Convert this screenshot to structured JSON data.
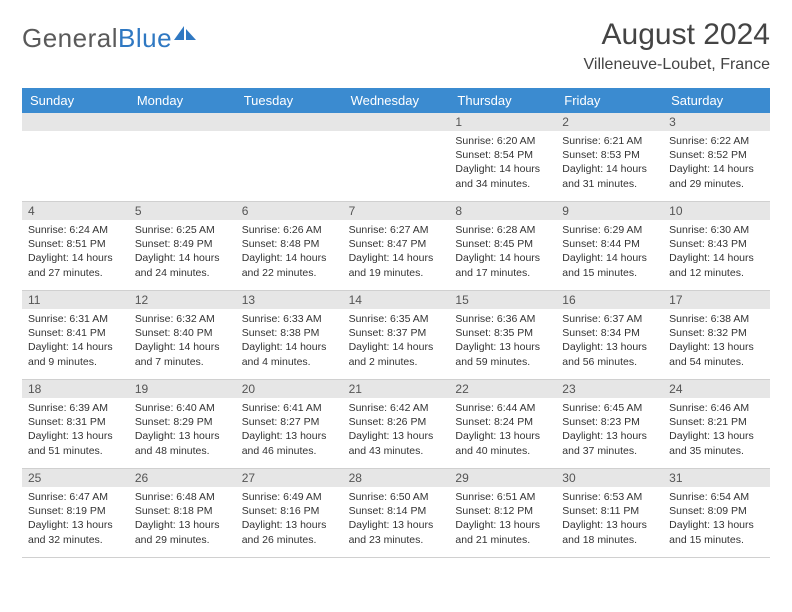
{
  "logo": {
    "text1": "General",
    "text2": "Blue"
  },
  "title": "August 2024",
  "location": "Villeneuve-Loubet, France",
  "colors": {
    "header_bg": "#3b8bd0",
    "header_text": "#ffffff",
    "daynum_bg": "#e6e6e6",
    "text": "#333333",
    "logo_gray": "#5a5a5a",
    "logo_blue": "#2f78c2"
  },
  "dayHeaders": [
    "Sunday",
    "Monday",
    "Tuesday",
    "Wednesday",
    "Thursday",
    "Friday",
    "Saturday"
  ],
  "weeks": [
    [
      {
        "num": "",
        "sunrise": "",
        "sunset": "",
        "daylight": ""
      },
      {
        "num": "",
        "sunrise": "",
        "sunset": "",
        "daylight": ""
      },
      {
        "num": "",
        "sunrise": "",
        "sunset": "",
        "daylight": ""
      },
      {
        "num": "",
        "sunrise": "",
        "sunset": "",
        "daylight": ""
      },
      {
        "num": "1",
        "sunrise": "Sunrise: 6:20 AM",
        "sunset": "Sunset: 8:54 PM",
        "daylight": "Daylight: 14 hours and 34 minutes."
      },
      {
        "num": "2",
        "sunrise": "Sunrise: 6:21 AM",
        "sunset": "Sunset: 8:53 PM",
        "daylight": "Daylight: 14 hours and 31 minutes."
      },
      {
        "num": "3",
        "sunrise": "Sunrise: 6:22 AM",
        "sunset": "Sunset: 8:52 PM",
        "daylight": "Daylight: 14 hours and 29 minutes."
      }
    ],
    [
      {
        "num": "4",
        "sunrise": "Sunrise: 6:24 AM",
        "sunset": "Sunset: 8:51 PM",
        "daylight": "Daylight: 14 hours and 27 minutes."
      },
      {
        "num": "5",
        "sunrise": "Sunrise: 6:25 AM",
        "sunset": "Sunset: 8:49 PM",
        "daylight": "Daylight: 14 hours and 24 minutes."
      },
      {
        "num": "6",
        "sunrise": "Sunrise: 6:26 AM",
        "sunset": "Sunset: 8:48 PM",
        "daylight": "Daylight: 14 hours and 22 minutes."
      },
      {
        "num": "7",
        "sunrise": "Sunrise: 6:27 AM",
        "sunset": "Sunset: 8:47 PM",
        "daylight": "Daylight: 14 hours and 19 minutes."
      },
      {
        "num": "8",
        "sunrise": "Sunrise: 6:28 AM",
        "sunset": "Sunset: 8:45 PM",
        "daylight": "Daylight: 14 hours and 17 minutes."
      },
      {
        "num": "9",
        "sunrise": "Sunrise: 6:29 AM",
        "sunset": "Sunset: 8:44 PM",
        "daylight": "Daylight: 14 hours and 15 minutes."
      },
      {
        "num": "10",
        "sunrise": "Sunrise: 6:30 AM",
        "sunset": "Sunset: 8:43 PM",
        "daylight": "Daylight: 14 hours and 12 minutes."
      }
    ],
    [
      {
        "num": "11",
        "sunrise": "Sunrise: 6:31 AM",
        "sunset": "Sunset: 8:41 PM",
        "daylight": "Daylight: 14 hours and 9 minutes."
      },
      {
        "num": "12",
        "sunrise": "Sunrise: 6:32 AM",
        "sunset": "Sunset: 8:40 PM",
        "daylight": "Daylight: 14 hours and 7 minutes."
      },
      {
        "num": "13",
        "sunrise": "Sunrise: 6:33 AM",
        "sunset": "Sunset: 8:38 PM",
        "daylight": "Daylight: 14 hours and 4 minutes."
      },
      {
        "num": "14",
        "sunrise": "Sunrise: 6:35 AM",
        "sunset": "Sunset: 8:37 PM",
        "daylight": "Daylight: 14 hours and 2 minutes."
      },
      {
        "num": "15",
        "sunrise": "Sunrise: 6:36 AM",
        "sunset": "Sunset: 8:35 PM",
        "daylight": "Daylight: 13 hours and 59 minutes."
      },
      {
        "num": "16",
        "sunrise": "Sunrise: 6:37 AM",
        "sunset": "Sunset: 8:34 PM",
        "daylight": "Daylight: 13 hours and 56 minutes."
      },
      {
        "num": "17",
        "sunrise": "Sunrise: 6:38 AM",
        "sunset": "Sunset: 8:32 PM",
        "daylight": "Daylight: 13 hours and 54 minutes."
      }
    ],
    [
      {
        "num": "18",
        "sunrise": "Sunrise: 6:39 AM",
        "sunset": "Sunset: 8:31 PM",
        "daylight": "Daylight: 13 hours and 51 minutes."
      },
      {
        "num": "19",
        "sunrise": "Sunrise: 6:40 AM",
        "sunset": "Sunset: 8:29 PM",
        "daylight": "Daylight: 13 hours and 48 minutes."
      },
      {
        "num": "20",
        "sunrise": "Sunrise: 6:41 AM",
        "sunset": "Sunset: 8:27 PM",
        "daylight": "Daylight: 13 hours and 46 minutes."
      },
      {
        "num": "21",
        "sunrise": "Sunrise: 6:42 AM",
        "sunset": "Sunset: 8:26 PM",
        "daylight": "Daylight: 13 hours and 43 minutes."
      },
      {
        "num": "22",
        "sunrise": "Sunrise: 6:44 AM",
        "sunset": "Sunset: 8:24 PM",
        "daylight": "Daylight: 13 hours and 40 minutes."
      },
      {
        "num": "23",
        "sunrise": "Sunrise: 6:45 AM",
        "sunset": "Sunset: 8:23 PM",
        "daylight": "Daylight: 13 hours and 37 minutes."
      },
      {
        "num": "24",
        "sunrise": "Sunrise: 6:46 AM",
        "sunset": "Sunset: 8:21 PM",
        "daylight": "Daylight: 13 hours and 35 minutes."
      }
    ],
    [
      {
        "num": "25",
        "sunrise": "Sunrise: 6:47 AM",
        "sunset": "Sunset: 8:19 PM",
        "daylight": "Daylight: 13 hours and 32 minutes."
      },
      {
        "num": "26",
        "sunrise": "Sunrise: 6:48 AM",
        "sunset": "Sunset: 8:18 PM",
        "daylight": "Daylight: 13 hours and 29 minutes."
      },
      {
        "num": "27",
        "sunrise": "Sunrise: 6:49 AM",
        "sunset": "Sunset: 8:16 PM",
        "daylight": "Daylight: 13 hours and 26 minutes."
      },
      {
        "num": "28",
        "sunrise": "Sunrise: 6:50 AM",
        "sunset": "Sunset: 8:14 PM",
        "daylight": "Daylight: 13 hours and 23 minutes."
      },
      {
        "num": "29",
        "sunrise": "Sunrise: 6:51 AM",
        "sunset": "Sunset: 8:12 PM",
        "daylight": "Daylight: 13 hours and 21 minutes."
      },
      {
        "num": "30",
        "sunrise": "Sunrise: 6:53 AM",
        "sunset": "Sunset: 8:11 PM",
        "daylight": "Daylight: 13 hours and 18 minutes."
      },
      {
        "num": "31",
        "sunrise": "Sunrise: 6:54 AM",
        "sunset": "Sunset: 8:09 PM",
        "daylight": "Daylight: 13 hours and 15 minutes."
      }
    ]
  ]
}
